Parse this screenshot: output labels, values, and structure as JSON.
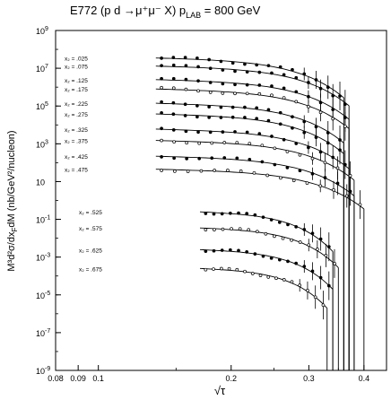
{
  "chart_data": {
    "type": "scatter",
    "title": "E772 (p d →μ⁺μ⁻ X)   p",
    "title_sub": "LAB",
    "title_tail": " = 800 GeV",
    "xlabel": "√τ",
    "ylabel": "M³d²σ/dx",
    "ylabel_sub": "F",
    "ylabel_tail": "dM (nb/GeV²/nucleon)",
    "x_scale": "log",
    "y_scale": "log",
    "xlim": [
      0.08,
      0.45
    ],
    "ylim": [
      1e-09,
      1000000000.0
    ],
    "x_ticks": [
      {
        "value": 0.08,
        "label": "0.08"
      },
      {
        "value": 0.09,
        "label": "0.09"
      },
      {
        "value": 0.1,
        "label": "0.1"
      },
      {
        "value": 0.2,
        "label": "0.2"
      },
      {
        "value": 0.3,
        "label": "0.3"
      },
      {
        "value": 0.4,
        "label": "0.4"
      }
    ],
    "y_ticks": [
      {
        "value": 1000000000.0,
        "label": "10",
        "exp": "9"
      },
      {
        "value": 10000000.0,
        "label": "10",
        "exp": "7"
      },
      {
        "value": 100000.0,
        "label": "10",
        "exp": "5"
      },
      {
        "value": 1000.0,
        "label": "10",
        "exp": "3"
      },
      {
        "value": 10,
        "label": "10",
        "exp": ""
      },
      {
        "value": 0.1,
        "label": "10",
        "exp": "-1"
      },
      {
        "value": 0.001,
        "label": "10",
        "exp": "-3"
      },
      {
        "value": 1e-05,
        "label": "10",
        "exp": "-5"
      },
      {
        "value": 1e-07,
        "label": "10",
        "exp": "-7"
      },
      {
        "value": 1e-09,
        "label": "10",
        "exp": "-9"
      }
    ],
    "grid": false,
    "series": [
      {
        "label": "x₂ = .025",
        "xf": 0.025,
        "y0": 35000000.0,
        "x_start": 0.135,
        "x_end": 0.36,
        "marker": "filled"
      },
      {
        "label": "x₂ = .075",
        "xf": 0.075,
        "y0": 13000000.0,
        "x_start": 0.135,
        "x_end": 0.37,
        "marker": "filled"
      },
      {
        "label": "x₂ = .125",
        "xf": 0.125,
        "y0": 2500000.0,
        "x_start": 0.135,
        "x_end": 0.37,
        "marker": "filled"
      },
      {
        "label": "x₂ = .175",
        "xf": 0.175,
        "y0": 800000.0,
        "x_start": 0.135,
        "x_end": 0.37,
        "marker": "open"
      },
      {
        "label": "x₂ = .225",
        "xf": 0.225,
        "y0": 140000.0,
        "x_start": 0.135,
        "x_end": 0.36,
        "marker": "filled"
      },
      {
        "label": "x₂ = .275",
        "xf": 0.275,
        "y0": 38000.0,
        "x_start": 0.135,
        "x_end": 0.36,
        "marker": "filled"
      },
      {
        "label": "x₂ = .325",
        "xf": 0.325,
        "y0": 6000,
        "x_start": 0.135,
        "x_end": 0.37,
        "marker": "filled"
      },
      {
        "label": "x₂ = .375",
        "xf": 0.375,
        "y0": 1500,
        "x_start": 0.135,
        "x_end": 0.38,
        "marker": "open"
      },
      {
        "label": "x₂ = .425",
        "xf": 0.425,
        "y0": 220,
        "x_start": 0.135,
        "x_end": 0.38,
        "marker": "filled"
      },
      {
        "label": "x₂ = .475",
        "xf": 0.475,
        "y0": 45,
        "x_start": 0.135,
        "x_end": 0.4,
        "marker": "open"
      },
      {
        "label": "x₂ = .525",
        "xf": 0.525,
        "y0": 0.25,
        "x_start": 0.17,
        "x_end": 0.34,
        "marker": "filled"
      },
      {
        "label": "x₂ = .575",
        "xf": 0.575,
        "y0": 0.035,
        "x_start": 0.17,
        "x_end": 0.35,
        "marker": "open"
      },
      {
        "label": "x₂ = .625",
        "xf": 0.625,
        "y0": 0.0025,
        "x_start": 0.17,
        "x_end": 0.34,
        "marker": "filled"
      },
      {
        "label": "x₂ = .675",
        "xf": 0.675,
        "y0": 0.00025,
        "x_start": 0.17,
        "x_end": 0.33,
        "marker": "open"
      }
    ]
  }
}
